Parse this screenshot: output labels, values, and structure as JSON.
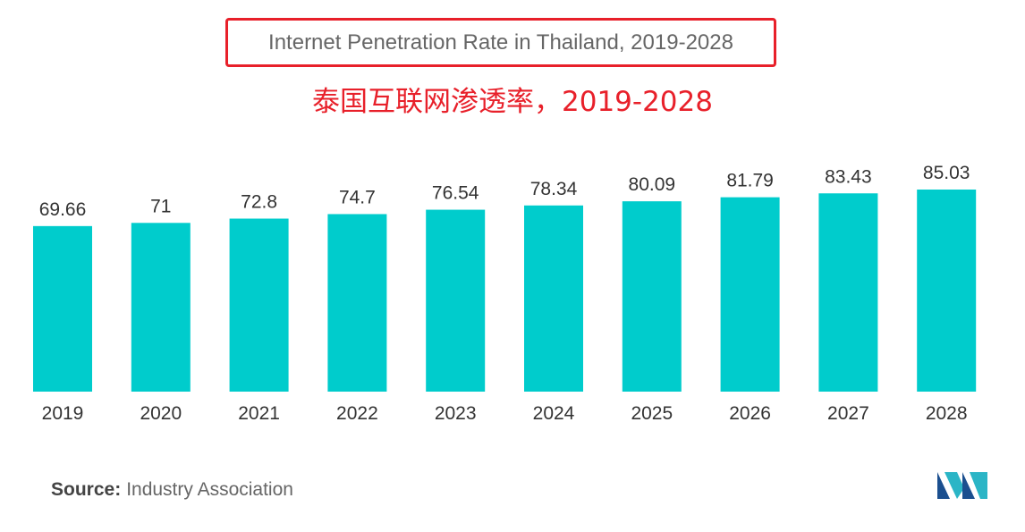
{
  "title": "Internet Penetration Rate in Thailand, 2019-2028",
  "subtitle": "泰国互联网渗透率，2019-2028",
  "source": {
    "label": "Source:",
    "value": "Industry Association"
  },
  "colors": {
    "bar": "#00cccc",
    "title_border": "#e8202a",
    "subtitle": "#e8202a"
  },
  "logo_icon": "mordor-logo-icon",
  "chart_data": {
    "type": "bar",
    "categories": [
      "2019",
      "2020",
      "2021",
      "2022",
      "2023",
      "2024",
      "2025",
      "2026",
      "2027",
      "2028"
    ],
    "values": [
      69.66,
      71,
      72.8,
      74.7,
      76.54,
      78.34,
      80.09,
      81.79,
      83.43,
      85.03
    ],
    "value_labels": [
      "69.66",
      "71",
      "72.8",
      "74.7",
      "76.54",
      "78.34",
      "80.09",
      "81.79",
      "83.43",
      "85.03"
    ],
    "title": "Internet Penetration Rate in Thailand, 2019-2028",
    "xlabel": "",
    "ylabel": "",
    "ylim": [
      0,
      85.03
    ],
    "grid": false,
    "legend": "none"
  }
}
